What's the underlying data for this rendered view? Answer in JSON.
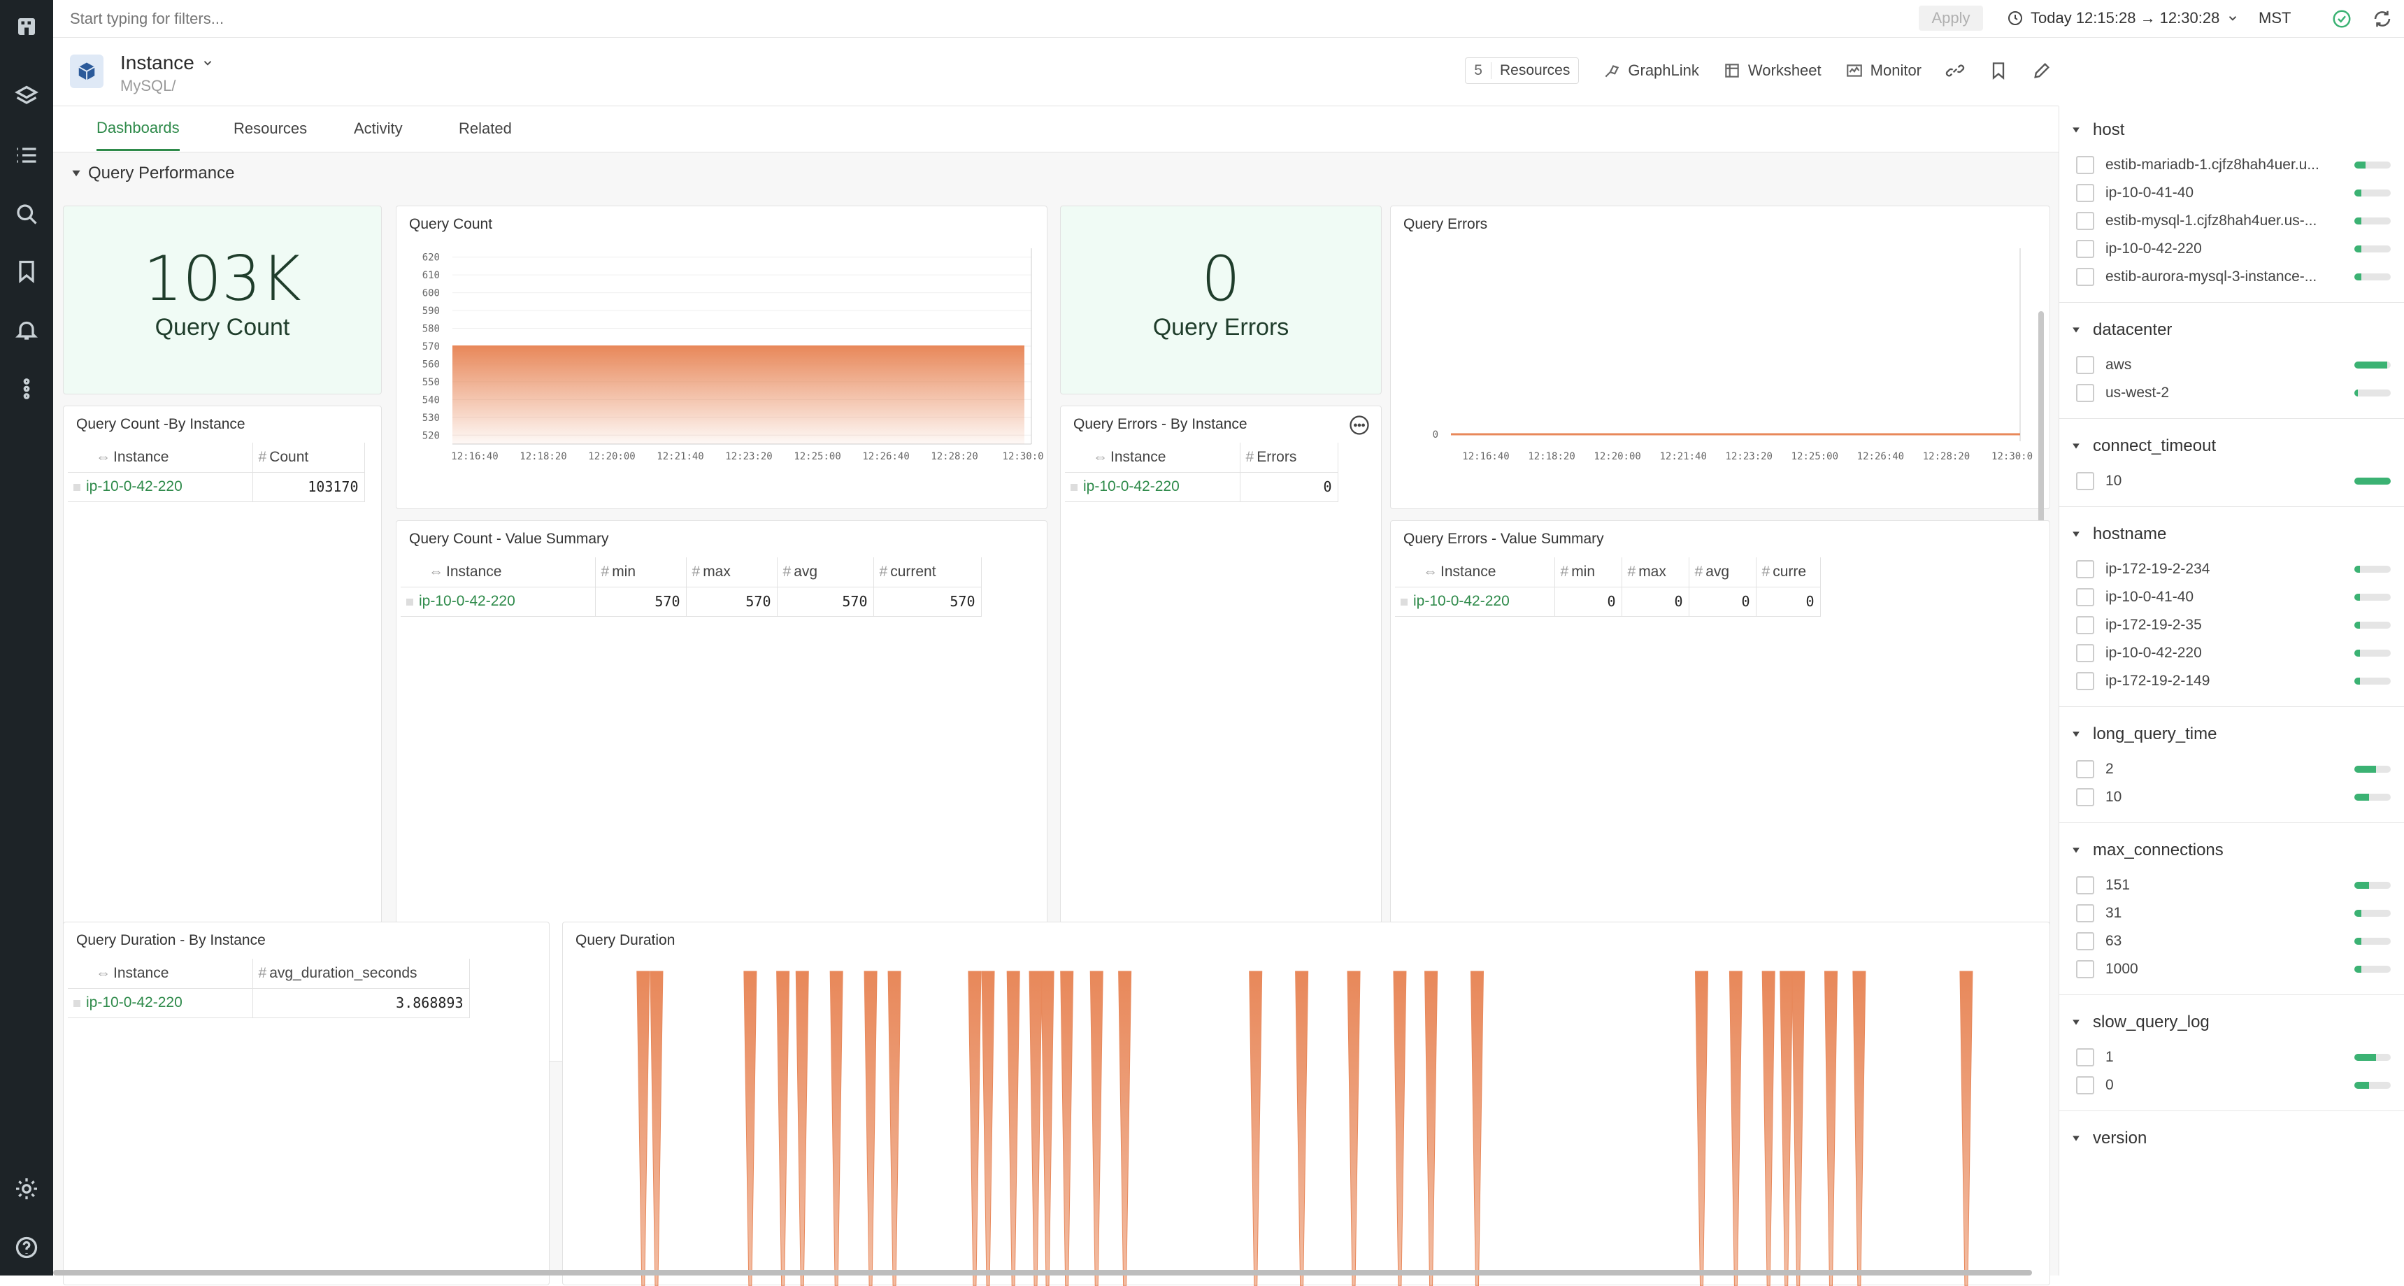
{
  "topbar": {
    "filter_placeholder": "Start typing for filters...",
    "apply_label": "Apply",
    "time_range": "Today 12:15:28 → 12:30:28",
    "timezone": "MST"
  },
  "header": {
    "title": "Instance",
    "subtitle": "MySQL/",
    "resources_count": "5",
    "resources_label": "Resources",
    "graphlink_label": "GraphLink",
    "worksheet_label": "Worksheet",
    "monitor_label": "Monitor"
  },
  "tabs": [
    "Dashboards",
    "Resources",
    "Activity",
    "Related"
  ],
  "section": {
    "title": "Query Performance"
  },
  "panels": {
    "query_count_stat": {
      "value": "103K",
      "label": "Query Count"
    },
    "query_count_chart": {
      "title": "Query Count"
    },
    "query_errors_stat": {
      "value": "0",
      "label": "Query Errors"
    },
    "query_errors_chart": {
      "title": "Query Errors"
    },
    "count_by_instance": {
      "title": "Query Count -By Instance",
      "col_instance": "Instance",
      "col_count": "Count",
      "rows": [
        {
          "instance": "ip-10-0-42-220",
          "count": "103170"
        }
      ]
    },
    "errors_by_instance": {
      "title": "Query Errors - By Instance",
      "col_instance": "Instance",
      "col_errors": "Errors",
      "rows": [
        {
          "instance": "ip-10-0-42-220",
          "errors": "0"
        }
      ]
    },
    "count_summary": {
      "title": "Query Count - Value Summary",
      "cols": [
        "Instance",
        "min",
        "max",
        "avg",
        "current"
      ],
      "rows": [
        {
          "instance": "ip-10-0-42-220",
          "min": "570",
          "max": "570",
          "avg": "570",
          "current": "570"
        }
      ]
    },
    "errors_summary": {
      "title": "Query Errors - Value Summary",
      "cols": [
        "Instance",
        "min",
        "max",
        "avg",
        "curre"
      ],
      "rows": [
        {
          "instance": "ip-10-0-42-220",
          "min": "0",
          "max": "0",
          "avg": "0",
          "current": "0"
        }
      ]
    },
    "duration_by_instance": {
      "title": "Query Duration - By Instance",
      "col_instance": "Instance",
      "col_avg": "avg_duration_seconds",
      "rows": [
        {
          "instance": "ip-10-0-42-220",
          "avg": "3.868893"
        }
      ]
    },
    "duration_chart": {
      "title": "Query Duration"
    }
  },
  "chart_data": [
    {
      "type": "area",
      "title": "Query Count",
      "x": [
        "12:16:40",
        "12:18:20",
        "12:20:00",
        "12:21:40",
        "12:23:20",
        "12:25:00",
        "12:26:40",
        "12:28:20",
        "12:30:0"
      ],
      "y_ticks": [
        520,
        530,
        540,
        550,
        560,
        570,
        580,
        590,
        600,
        610,
        620
      ],
      "ylim": [
        515,
        625
      ],
      "values": [
        570,
        570,
        570,
        570,
        570,
        570,
        570,
        570,
        570
      ],
      "color": "#e8885a"
    },
    {
      "type": "line",
      "title": "Query Errors",
      "x": [
        "12:16:40",
        "12:18:20",
        "12:20:00",
        "12:21:40",
        "12:23:20",
        "12:25:00",
        "12:26:40",
        "12:28:20",
        "12:30:0"
      ],
      "y_ticks": [
        0
      ],
      "values": [
        0,
        0,
        0,
        0,
        0,
        0,
        0,
        0,
        0
      ],
      "color": "#e8885a"
    },
    {
      "type": "area",
      "title": "Query Duration",
      "spikes": [
        0.054,
        0.063,
        0.126,
        0.148,
        0.161,
        0.184,
        0.207,
        0.223,
        0.277,
        0.286,
        0.303,
        0.318,
        0.326,
        0.339,
        0.359,
        0.378,
        0.466,
        0.497,
        0.532,
        0.563,
        0.584,
        0.615,
        0.766,
        0.789,
        0.811,
        0.823,
        0.831,
        0.853,
        0.872,
        0.944
      ],
      "color": "#e8885a"
    }
  ],
  "filters": [
    {
      "name": "host",
      "items": [
        {
          "label": "estib-mariadb-1.cjfz8hah4uer.u...",
          "frac": 0.3
        },
        {
          "label": "ip-10-0-41-40",
          "frac": 0.2
        },
        {
          "label": "estib-mysql-1.cjfz8hah4uer.us-...",
          "frac": 0.2
        },
        {
          "label": "ip-10-0-42-220",
          "frac": 0.2
        },
        {
          "label": "estib-aurora-mysql-3-instance-...",
          "frac": 0.2
        }
      ]
    },
    {
      "name": "datacenter",
      "items": [
        {
          "label": "aws",
          "frac": 0.9
        },
        {
          "label": "us-west-2",
          "frac": 0.1
        }
      ]
    },
    {
      "name": "connect_timeout",
      "items": [
        {
          "label": "10",
          "frac": 1.0
        }
      ]
    },
    {
      "name": "hostname",
      "items": [
        {
          "label": "ip-172-19-2-234",
          "frac": 0.15
        },
        {
          "label": "ip-10-0-41-40",
          "frac": 0.15
        },
        {
          "label": "ip-172-19-2-35",
          "frac": 0.15
        },
        {
          "label": "ip-10-0-42-220",
          "frac": 0.15
        },
        {
          "label": "ip-172-19-2-149",
          "frac": 0.15
        }
      ]
    },
    {
      "name": "long_query_time",
      "items": [
        {
          "label": "2",
          "frac": 0.6
        },
        {
          "label": "10",
          "frac": 0.4
        }
      ]
    },
    {
      "name": "max_connections",
      "items": [
        {
          "label": "151",
          "frac": 0.4
        },
        {
          "label": "31",
          "frac": 0.2
        },
        {
          "label": "63",
          "frac": 0.2
        },
        {
          "label": "1000",
          "frac": 0.2
        }
      ]
    },
    {
      "name": "slow_query_log",
      "items": [
        {
          "label": "1",
          "frac": 0.6
        },
        {
          "label": "0",
          "frac": 0.4
        }
      ]
    },
    {
      "name": "version",
      "items": []
    }
  ]
}
